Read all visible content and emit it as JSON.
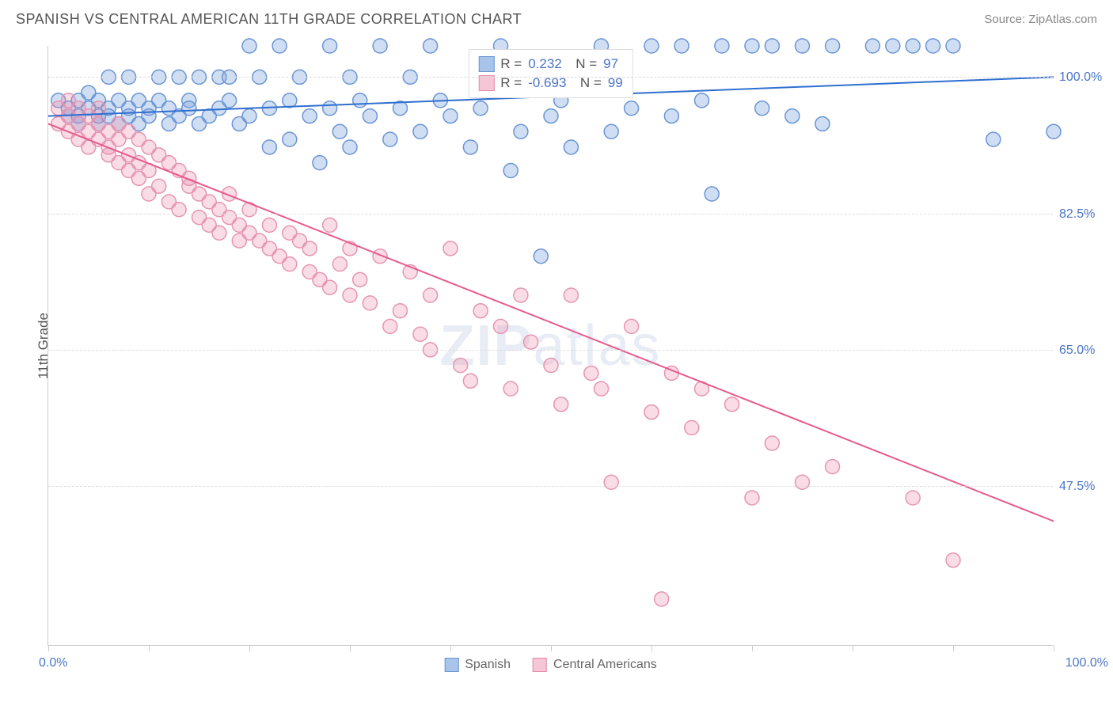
{
  "header": {
    "title": "SPANISH VS CENTRAL AMERICAN 11TH GRADE CORRELATION CHART",
    "source_prefix": "Source: ",
    "source_link": "ZipAtlas.com"
  },
  "chart": {
    "type": "scatter",
    "y_axis_title": "11th Grade",
    "xlim": [
      0,
      100
    ],
    "ylim": [
      27,
      104
    ],
    "x_tick_positions": [
      0,
      10,
      20,
      30,
      40,
      50,
      60,
      70,
      80,
      90,
      100
    ],
    "x_label_min": "0.0%",
    "x_label_max": "100.0%",
    "y_gridlines": [
      47.5,
      65.0,
      82.5,
      100.0
    ],
    "y_tick_labels": [
      "47.5%",
      "65.0%",
      "82.5%",
      "100.0%"
    ],
    "grid_color": "#dddddd",
    "axis_color": "#cccccc",
    "background_color": "#ffffff",
    "tick_label_color": "#4a74c9",
    "marker_radius": 9,
    "marker_stroke_width": 1.5,
    "trend_line_width": 2,
    "watermark_text": "ZIPatlas",
    "series": [
      {
        "name": "Spanish",
        "fill": "rgba(120,160,220,0.35)",
        "stroke": "#6a95d4",
        "swatch_fill": "#a8c4ea",
        "swatch_border": "#6a95d4",
        "r_value": "0.232",
        "n_value": "97",
        "trend": {
          "x1": 0,
          "y1": 95,
          "x2": 100,
          "y2": 100,
          "color": "#2f6fd0"
        },
        "points": [
          [
            1,
            97
          ],
          [
            2,
            96
          ],
          [
            2,
            95
          ],
          [
            3,
            97
          ],
          [
            3,
            95
          ],
          [
            3,
            94
          ],
          [
            4,
            96
          ],
          [
            4,
            98
          ],
          [
            5,
            95
          ],
          [
            5,
            94
          ],
          [
            5,
            97
          ],
          [
            6,
            96
          ],
          [
            6,
            95
          ],
          [
            6,
            100
          ],
          [
            7,
            97
          ],
          [
            7,
            94
          ],
          [
            8,
            96
          ],
          [
            8,
            95
          ],
          [
            8,
            100
          ],
          [
            9,
            97
          ],
          [
            9,
            94
          ],
          [
            10,
            96
          ],
          [
            10,
            95
          ],
          [
            11,
            100
          ],
          [
            11,
            97
          ],
          [
            12,
            96
          ],
          [
            12,
            94
          ],
          [
            13,
            100
          ],
          [
            13,
            95
          ],
          [
            14,
            97
          ],
          [
            14,
            96
          ],
          [
            15,
            100
          ],
          [
            15,
            94
          ],
          [
            16,
            95
          ],
          [
            17,
            100
          ],
          [
            17,
            96
          ],
          [
            18,
            97
          ],
          [
            18,
            100
          ],
          [
            19,
            94
          ],
          [
            20,
            104
          ],
          [
            20,
            95
          ],
          [
            21,
            100
          ],
          [
            22,
            96
          ],
          [
            22,
            91
          ],
          [
            23,
            104
          ],
          [
            24,
            97
          ],
          [
            24,
            92
          ],
          [
            25,
            100
          ],
          [
            26,
            95
          ],
          [
            27,
            89
          ],
          [
            28,
            104
          ],
          [
            28,
            96
          ],
          [
            29,
            93
          ],
          [
            30,
            100
          ],
          [
            30,
            91
          ],
          [
            31,
            97
          ],
          [
            32,
            95
          ],
          [
            33,
            104
          ],
          [
            34,
            92
          ],
          [
            35,
            96
          ],
          [
            36,
            100
          ],
          [
            37,
            93
          ],
          [
            38,
            104
          ],
          [
            39,
            97
          ],
          [
            40,
            95
          ],
          [
            42,
            91
          ],
          [
            43,
            96
          ],
          [
            45,
            104
          ],
          [
            46,
            88
          ],
          [
            47,
            93
          ],
          [
            48,
            100
          ],
          [
            49,
            77
          ],
          [
            50,
            95
          ],
          [
            51,
            97
          ],
          [
            52,
            91
          ],
          [
            55,
            104
          ],
          [
            56,
            93
          ],
          [
            58,
            96
          ],
          [
            60,
            104
          ],
          [
            62,
            95
          ],
          [
            63,
            104
          ],
          [
            65,
            97
          ],
          [
            66,
            85
          ],
          [
            67,
            104
          ],
          [
            70,
            104
          ],
          [
            71,
            96
          ],
          [
            72,
            104
          ],
          [
            74,
            95
          ],
          [
            75,
            104
          ],
          [
            77,
            94
          ],
          [
            78,
            104
          ],
          [
            82,
            104
          ],
          [
            84,
            104
          ],
          [
            86,
            104
          ],
          [
            88,
            104
          ],
          [
            90,
            104
          ],
          [
            94,
            92
          ],
          [
            100,
            93
          ]
        ]
      },
      {
        "name": "Central Americans",
        "fill": "rgba(235,140,170,0.30)",
        "stroke": "#e695b3",
        "swatch_fill": "#f5c6d6",
        "swatch_border": "#e58aac",
        "r_value": "-0.693",
        "n_value": "99",
        "trend": {
          "x1": 0,
          "y1": 94,
          "x2": 100,
          "y2": 43,
          "color": "#e75a8c"
        },
        "points": [
          [
            1,
            96
          ],
          [
            1,
            94
          ],
          [
            2,
            95
          ],
          [
            2,
            97
          ],
          [
            2,
            93
          ],
          [
            3,
            96
          ],
          [
            3,
            94
          ],
          [
            3,
            92
          ],
          [
            4,
            95
          ],
          [
            4,
            93
          ],
          [
            4,
            91
          ],
          [
            5,
            94
          ],
          [
            5,
            92
          ],
          [
            5,
            96
          ],
          [
            6,
            93
          ],
          [
            6,
            91
          ],
          [
            6,
            90
          ],
          [
            7,
            94
          ],
          [
            7,
            92
          ],
          [
            7,
            89
          ],
          [
            8,
            93
          ],
          [
            8,
            90
          ],
          [
            8,
            88
          ],
          [
            9,
            92
          ],
          [
            9,
            89
          ],
          [
            9,
            87
          ],
          [
            10,
            91
          ],
          [
            10,
            88
          ],
          [
            10,
            85
          ],
          [
            11,
            90
          ],
          [
            11,
            86
          ],
          [
            12,
            89
          ],
          [
            12,
            84
          ],
          [
            13,
            88
          ],
          [
            13,
            83
          ],
          [
            14,
            86
          ],
          [
            14,
            87
          ],
          [
            15,
            85
          ],
          [
            15,
            82
          ],
          [
            16,
            84
          ],
          [
            16,
            81
          ],
          [
            17,
            83
          ],
          [
            17,
            80
          ],
          [
            18,
            82
          ],
          [
            18,
            85
          ],
          [
            19,
            81
          ],
          [
            19,
            79
          ],
          [
            20,
            80
          ],
          [
            20,
            83
          ],
          [
            21,
            79
          ],
          [
            22,
            78
          ],
          [
            22,
            81
          ],
          [
            23,
            77
          ],
          [
            24,
            80
          ],
          [
            24,
            76
          ],
          [
            25,
            79
          ],
          [
            26,
            75
          ],
          [
            26,
            78
          ],
          [
            27,
            74
          ],
          [
            28,
            81
          ],
          [
            28,
            73
          ],
          [
            29,
            76
          ],
          [
            30,
            72
          ],
          [
            30,
            78
          ],
          [
            31,
            74
          ],
          [
            32,
            71
          ],
          [
            33,
            77
          ],
          [
            34,
            68
          ],
          [
            35,
            70
          ],
          [
            36,
            75
          ],
          [
            37,
            67
          ],
          [
            38,
            65
          ],
          [
            38,
            72
          ],
          [
            40,
            78
          ],
          [
            41,
            63
          ],
          [
            42,
            61
          ],
          [
            43,
            70
          ],
          [
            45,
            68
          ],
          [
            46,
            60
          ],
          [
            47,
            72
          ],
          [
            48,
            66
          ],
          [
            50,
            63
          ],
          [
            51,
            58
          ],
          [
            52,
            72
          ],
          [
            54,
            62
          ],
          [
            55,
            60
          ],
          [
            56,
            48
          ],
          [
            58,
            68
          ],
          [
            60,
            57
          ],
          [
            61,
            33
          ],
          [
            62,
            62
          ],
          [
            64,
            55
          ],
          [
            65,
            60
          ],
          [
            68,
            58
          ],
          [
            70,
            46
          ],
          [
            72,
            53
          ],
          [
            75,
            48
          ],
          [
            78,
            50
          ],
          [
            86,
            46
          ],
          [
            90,
            38
          ]
        ]
      }
    ],
    "legend_bottom": [
      {
        "label": "Spanish",
        "fill": "#a8c4ea",
        "border": "#6a95d4"
      },
      {
        "label": "Central Americans",
        "fill": "#f5c6d6",
        "border": "#e58aac"
      }
    ]
  }
}
